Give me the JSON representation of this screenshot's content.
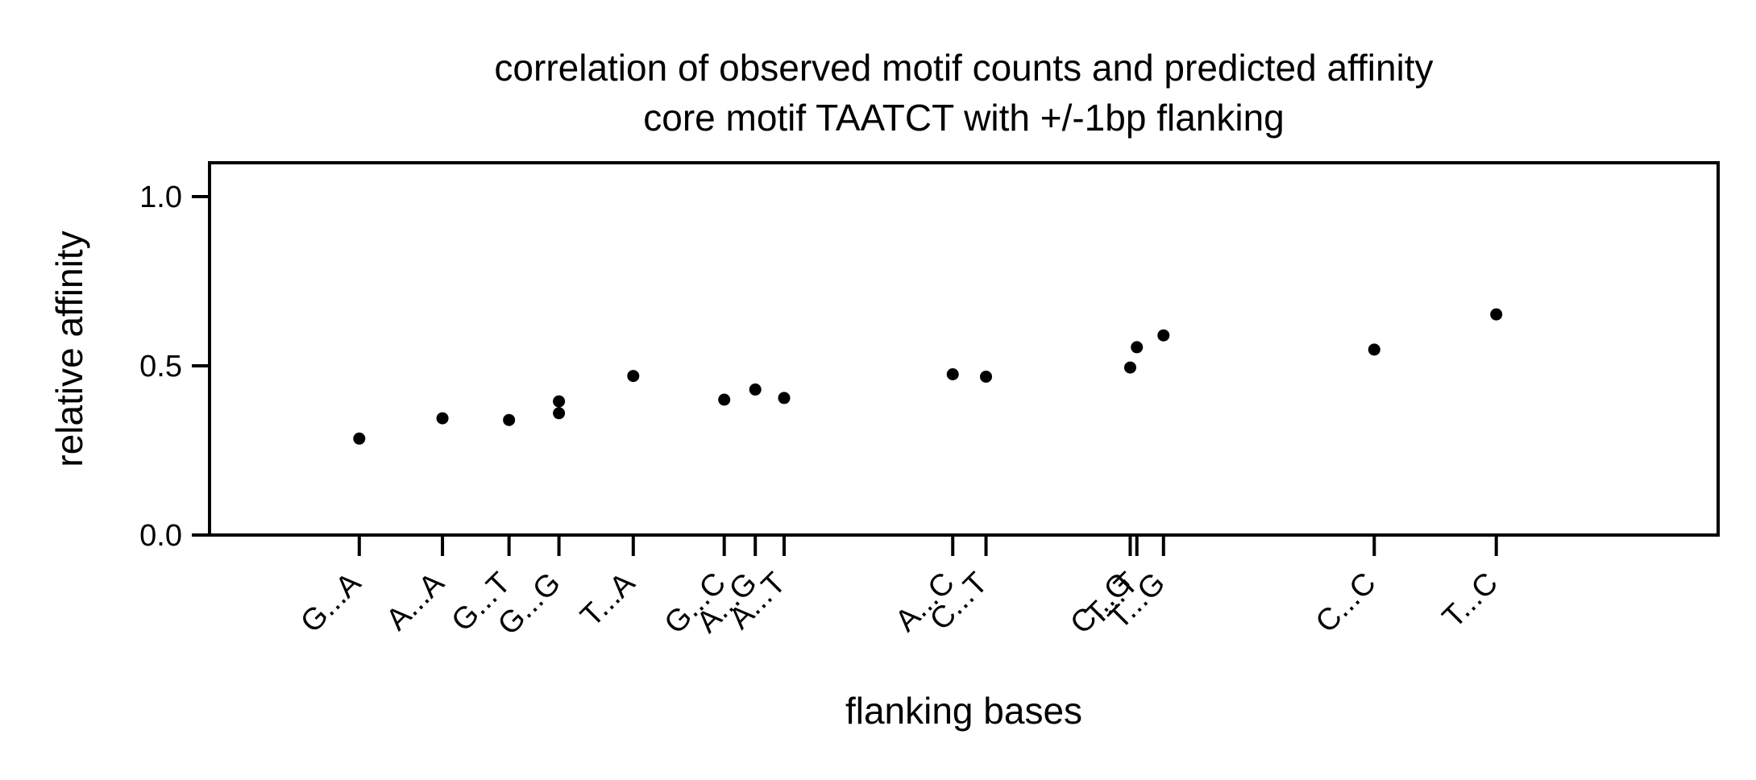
{
  "chart_data": {
    "type": "scatter",
    "title": "correlation of observed motif counts and predicted affinity",
    "subtitle": "core motif TAATCT with +/-1bp flanking",
    "xlabel": "flanking bases",
    "ylabel": "relative affinity",
    "xlim": [
      0,
      1360
    ],
    "ylim": [
      0,
      1.1
    ],
    "yticks": [
      0.0,
      0.5,
      1.0
    ],
    "ytick_labels": [
      "0.0",
      "0.5",
      "1.0"
    ],
    "grid": false,
    "colors": {
      "points": "#000000",
      "axes": "#000000"
    },
    "points": [
      {
        "label": "G...A",
        "x": 135,
        "y": 0.285
      },
      {
        "label": "A...A",
        "x": 210,
        "y": 0.345
      },
      {
        "label": "G...T",
        "x": 270,
        "y": 0.34
      },
      {
        "label": "G...G",
        "x": 315,
        "y": 0.36
      },
      {
        "label": "T...A",
        "x": 382,
        "y": 0.47
      },
      {
        "label": "G...C",
        "x": 464,
        "y": 0.4
      },
      {
        "label": "A...G",
        "x": 492,
        "y": 0.43
      },
      {
        "label": "A...T",
        "x": 518,
        "y": 0.405
      },
      {
        "label": "A...C",
        "x": 670,
        "y": 0.475
      },
      {
        "label": "C...T",
        "x": 700,
        "y": 0.468
      },
      {
        "label": "C...G",
        "x": 830,
        "y": 0.495
      },
      {
        "label": "T...T",
        "x": 836,
        "y": 0.555
      },
      {
        "label": "T...G",
        "x": 860,
        "y": 0.59
      },
      {
        "label": "C...C",
        "x": 1050,
        "y": 0.548
      },
      {
        "label": "T...C",
        "x": 1160,
        "y": 0.652
      }
    ],
    "extra_points": [
      {
        "x": 315,
        "y": 0.395
      }
    ]
  }
}
